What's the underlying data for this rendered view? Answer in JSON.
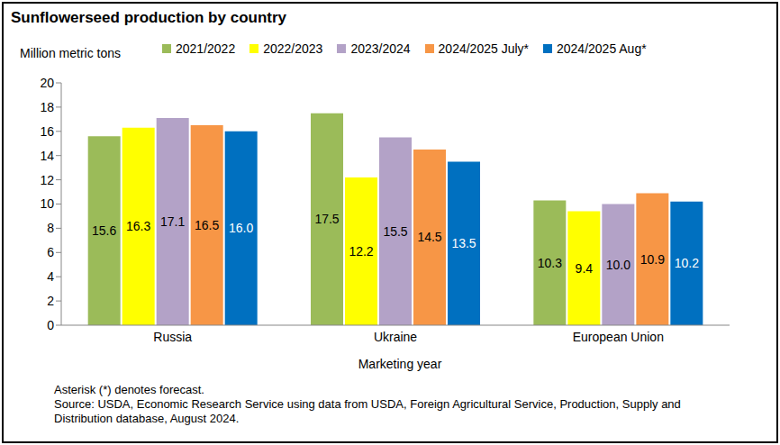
{
  "chart_data": {
    "type": "bar",
    "title": "Sunflowerseed production by country",
    "y_label": "Million metric tons",
    "x_label": "Marketing year",
    "categories": [
      "Russia",
      "Ukraine",
      "European Union"
    ],
    "series": [
      {
        "name": "2021/2022",
        "color": "#9bbb59",
        "values": [
          15.6,
          17.5,
          10.3
        ],
        "value_labels": [
          "15.6",
          "17.5",
          "10.3"
        ]
      },
      {
        "name": "2022/2023",
        "color": "#ffff00",
        "values": [
          16.3,
          12.2,
          9.4
        ],
        "value_labels": [
          "16.3",
          "12.2",
          "9.4"
        ]
      },
      {
        "name": "2023/2024",
        "color": "#b3a2c7",
        "values": [
          17.1,
          15.5,
          10.0
        ],
        "value_labels": [
          "17.1",
          "15.5",
          "10.0"
        ]
      },
      {
        "name": "2024/2025 July*",
        "color": "#f79646",
        "values": [
          16.5,
          14.5,
          10.9
        ],
        "value_labels": [
          "16.5",
          "14.5",
          "10.9"
        ]
      },
      {
        "name": "2024/2025 Aug*",
        "color": "#0070c0",
        "values": [
          16.0,
          13.5,
          10.2
        ],
        "value_labels": [
          "16.0",
          "13.5",
          "10.2"
        ]
      }
    ],
    "ylim": [
      0,
      20
    ],
    "yticks": [
      0,
      2,
      4,
      6,
      8,
      10,
      12,
      14,
      16,
      18,
      20
    ],
    "grid": false,
    "legend": "top",
    "data_labels": true,
    "notes": [
      "Asterisk (*) denotes forecast.",
      "Source: USDA, Economic Research Service using data from USDA, Foreign Agricultural Service, Production, Supply and Distribution database, August 2024."
    ]
  }
}
